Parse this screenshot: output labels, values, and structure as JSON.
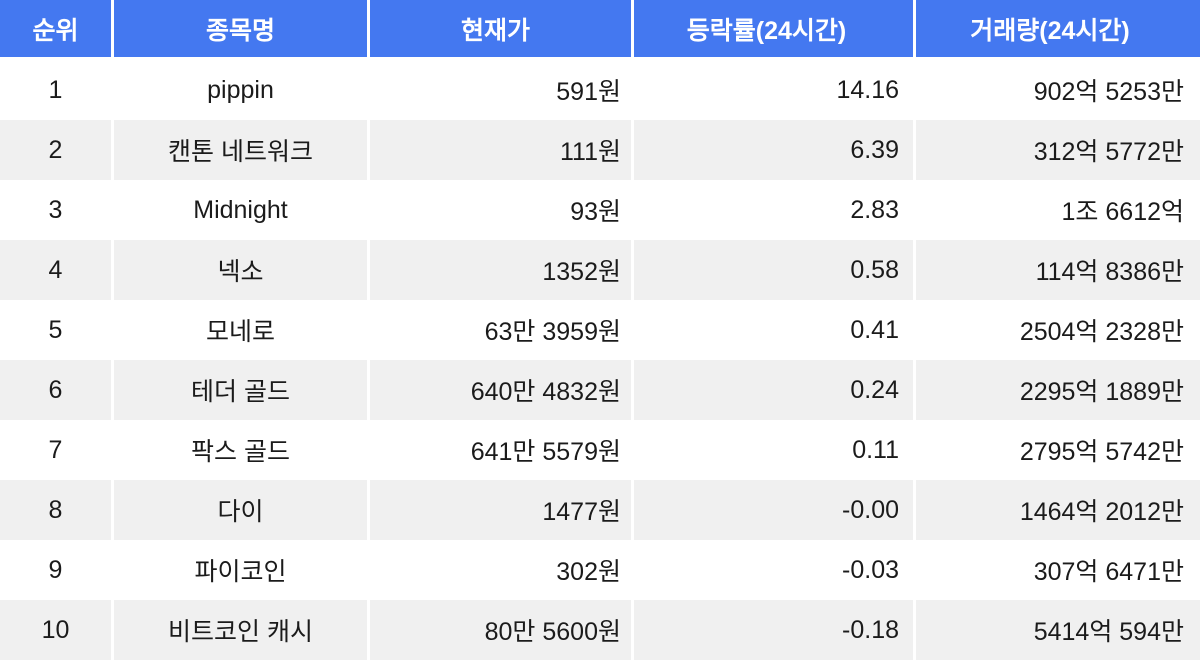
{
  "table": {
    "columns": [
      {
        "key": "rank",
        "label": "순위"
      },
      {
        "key": "name",
        "label": "종목명"
      },
      {
        "key": "price",
        "label": "현재가"
      },
      {
        "key": "change",
        "label": "등락률(24시간)"
      },
      {
        "key": "volume",
        "label": "거래량(24시간)"
      }
    ],
    "rows": [
      {
        "rank": "1",
        "name": "pippin",
        "price": "591원",
        "change": "14.16",
        "volume": "902억 5253만"
      },
      {
        "rank": "2",
        "name": "캔톤 네트워크",
        "price": "111원",
        "change": "6.39",
        "volume": "312억 5772만"
      },
      {
        "rank": "3",
        "name": "Midnight",
        "price": "93원",
        "change": "2.83",
        "volume": "1조 6612억"
      },
      {
        "rank": "4",
        "name": "넥소",
        "price": "1352원",
        "change": "0.58",
        "volume": "114억 8386만"
      },
      {
        "rank": "5",
        "name": "모네로",
        "price": "63만 3959원",
        "change": "0.41",
        "volume": "2504억 2328만"
      },
      {
        "rank": "6",
        "name": "테더 골드",
        "price": "640만 4832원",
        "change": "0.24",
        "volume": "2295억 1889만"
      },
      {
        "rank": "7",
        "name": "팍스 골드",
        "price": "641만 5579원",
        "change": "0.11",
        "volume": "2795억 5742만"
      },
      {
        "rank": "8",
        "name": "다이",
        "price": "1477원",
        "change": "-0.00",
        "volume": "1464억 2012만"
      },
      {
        "rank": "9",
        "name": "파이코인",
        "price": "302원",
        "change": "-0.03",
        "volume": "307억 6471만"
      },
      {
        "rank": "10",
        "name": "비트코인 캐시",
        "price": "80만 5600원",
        "change": "-0.18",
        "volume": "5414억 594만"
      }
    ],
    "colors": {
      "header_bg": "#4478F0",
      "header_text": "#ffffff",
      "row_bg": "#ffffff",
      "row_alt_bg": "#f0f0f0",
      "body_text": "#1b1b1b",
      "divider": "#ffffff"
    }
  }
}
